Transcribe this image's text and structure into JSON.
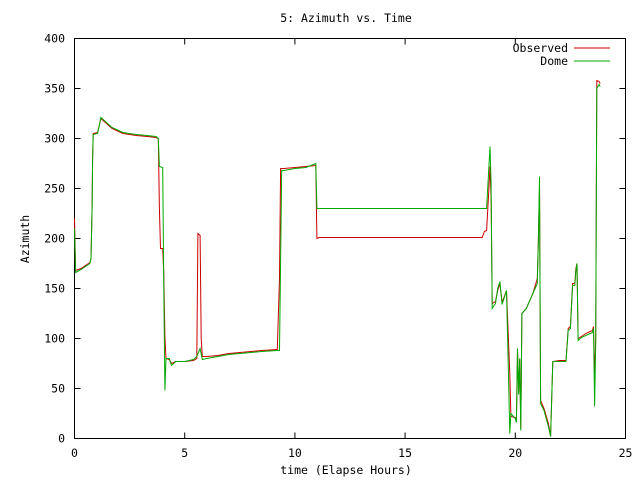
{
  "chart_data": {
    "type": "line",
    "title": "5: Azimuth vs. Time",
    "xlabel": "time (Elapse Hours)",
    "ylabel": "Azimuth",
    "xlim": [
      0,
      25
    ],
    "ylim": [
      0,
      400
    ],
    "xticks": [
      0,
      5,
      10,
      15,
      20,
      25
    ],
    "yticks": [
      0,
      50,
      100,
      150,
      200,
      250,
      300,
      350,
      400
    ],
    "grid": false,
    "legend": "top-right",
    "series": [
      {
        "name": "Observed",
        "color": "#cc0000",
        "points": [
          [
            0,
            220
          ],
          [
            0.05,
            168
          ],
          [
            0.3,
            170
          ],
          [
            0.7,
            176
          ],
          [
            0.75,
            180
          ],
          [
            0.8,
            232
          ],
          [
            0.82,
            280
          ],
          [
            0.85,
            305
          ],
          [
            1.05,
            306
          ],
          [
            1.2,
            320
          ],
          [
            1.4,
            316
          ],
          [
            1.7,
            310
          ],
          [
            2.2,
            305
          ],
          [
            2.8,
            303
          ],
          [
            3.3,
            302
          ],
          [
            3.7,
            301
          ],
          [
            3.8,
            300
          ],
          [
            3.85,
            230
          ],
          [
            3.9,
            190
          ],
          [
            4.0,
            190
          ],
          [
            4.05,
            165
          ],
          [
            4.1,
            102
          ],
          [
            4.15,
            80
          ],
          [
            4.3,
            79
          ],
          [
            4.4,
            75
          ],
          [
            4.6,
            77
          ],
          [
            5.0,
            77
          ],
          [
            5.4,
            78
          ],
          [
            5.55,
            80
          ],
          [
            5.6,
            205
          ],
          [
            5.7,
            203
          ],
          [
            5.75,
            100
          ],
          [
            5.8,
            82
          ],
          [
            6.0,
            82
          ],
          [
            6.5,
            83
          ],
          [
            7.0,
            85
          ],
          [
            7.5,
            86
          ],
          [
            8.0,
            87
          ],
          [
            8.5,
            88
          ],
          [
            9.2,
            89
          ],
          [
            9.3,
            160
          ],
          [
            9.35,
            270
          ],
          [
            9.5,
            270
          ],
          [
            10.0,
            271
          ],
          [
            10.5,
            272
          ],
          [
            10.95,
            273
          ],
          [
            11.0,
            200
          ],
          [
            11.1,
            201
          ],
          [
            12.0,
            201
          ],
          [
            14.0,
            201
          ],
          [
            16.0,
            201
          ],
          [
            18.0,
            201
          ],
          [
            18.5,
            201
          ],
          [
            18.6,
            207
          ],
          [
            18.7,
            208
          ],
          [
            18.8,
            250
          ],
          [
            18.85,
            272
          ],
          [
            18.9,
            240
          ],
          [
            18.95,
            135
          ],
          [
            19.1,
            137
          ],
          [
            19.2,
            148
          ],
          [
            19.3,
            155
          ],
          [
            19.4,
            136
          ],
          [
            19.6,
            148
          ],
          [
            19.75,
            65
          ],
          [
            19.8,
            22
          ],
          [
            20.0,
            21
          ],
          [
            20.05,
            18
          ],
          [
            20.1,
            88
          ],
          [
            20.15,
            46
          ],
          [
            20.2,
            80
          ],
          [
            20.25,
            10
          ],
          [
            20.3,
            125
          ],
          [
            20.5,
            130
          ],
          [
            20.8,
            145
          ],
          [
            21.0,
            160
          ],
          [
            21.05,
            200
          ],
          [
            21.1,
            250
          ],
          [
            21.15,
            38
          ],
          [
            21.3,
            30
          ],
          [
            21.5,
            15
          ],
          [
            21.6,
            2
          ],
          [
            21.7,
            77
          ],
          [
            22.0,
            78
          ],
          [
            22.3,
            78
          ],
          [
            22.4,
            110
          ],
          [
            22.5,
            112
          ],
          [
            22.6,
            155
          ],
          [
            22.7,
            155
          ],
          [
            22.75,
            170
          ],
          [
            22.8,
            175
          ],
          [
            22.85,
            100
          ],
          [
            23.0,
            102
          ],
          [
            23.2,
            105
          ],
          [
            23.5,
            108
          ],
          [
            23.55,
            112
          ],
          [
            23.6,
            60
          ],
          [
            23.65,
            100
          ],
          [
            23.7,
            358
          ],
          [
            23.8,
            357
          ],
          [
            23.85,
            355
          ]
        ]
      },
      {
        "name": "Dome",
        "color": "#00aa00",
        "points": [
          [
            0,
            210
          ],
          [
            0.05,
            166
          ],
          [
            0.3,
            169
          ],
          [
            0.7,
            175
          ],
          [
            0.75,
            180
          ],
          [
            0.8,
            230
          ],
          [
            0.82,
            278
          ],
          [
            0.85,
            304
          ],
          [
            1.05,
            305
          ],
          [
            1.2,
            321
          ],
          [
            1.4,
            317
          ],
          [
            1.7,
            311
          ],
          [
            2.2,
            306
          ],
          [
            2.8,
            304
          ],
          [
            3.3,
            303
          ],
          [
            3.7,
            302
          ],
          [
            3.8,
            300
          ],
          [
            3.85,
            272
          ],
          [
            4.0,
            271
          ],
          [
            4.05,
            150
          ],
          [
            4.1,
            48
          ],
          [
            4.15,
            80
          ],
          [
            4.3,
            80
          ],
          [
            4.4,
            73
          ],
          [
            4.6,
            77
          ],
          [
            5.0,
            77
          ],
          [
            5.4,
            79
          ],
          [
            5.55,
            82
          ],
          [
            5.7,
            90
          ],
          [
            5.8,
            79
          ],
          [
            6.0,
            80
          ],
          [
            6.5,
            82
          ],
          [
            7.0,
            84
          ],
          [
            7.5,
            85
          ],
          [
            8.0,
            86
          ],
          [
            8.5,
            87
          ],
          [
            9.2,
            88
          ],
          [
            9.3,
            88
          ],
          [
            9.4,
            268
          ],
          [
            9.5,
            268
          ],
          [
            10.0,
            270
          ],
          [
            10.5,
            271
          ],
          [
            10.95,
            275
          ],
          [
            11.0,
            230
          ],
          [
            11.1,
            230
          ],
          [
            12.0,
            230
          ],
          [
            14.0,
            230
          ],
          [
            16.0,
            230
          ],
          [
            18.0,
            230
          ],
          [
            18.5,
            230
          ],
          [
            18.6,
            230
          ],
          [
            18.7,
            230
          ],
          [
            18.8,
            272
          ],
          [
            18.85,
            292
          ],
          [
            18.9,
            255
          ],
          [
            18.95,
            130
          ],
          [
            19.1,
            135
          ],
          [
            19.2,
            150
          ],
          [
            19.3,
            157
          ],
          [
            19.4,
            134
          ],
          [
            19.6,
            148
          ],
          [
            19.75,
            5
          ],
          [
            19.8,
            25
          ],
          [
            20.0,
            20
          ],
          [
            20.05,
            16
          ],
          [
            20.1,
            90
          ],
          [
            20.15,
            44
          ],
          [
            20.2,
            80
          ],
          [
            20.25,
            8
          ],
          [
            20.3,
            125
          ],
          [
            20.5,
            130
          ],
          [
            20.8,
            145
          ],
          [
            21.0,
            155
          ],
          [
            21.05,
            200
          ],
          [
            21.1,
            262
          ],
          [
            21.15,
            35
          ],
          [
            21.3,
            28
          ],
          [
            21.5,
            12
          ],
          [
            21.6,
            2
          ],
          [
            21.7,
            77
          ],
          [
            22.0,
            77
          ],
          [
            22.3,
            77
          ],
          [
            22.4,
            108
          ],
          [
            22.5,
            110
          ],
          [
            22.6,
            153
          ],
          [
            22.7,
            153
          ],
          [
            22.75,
            168
          ],
          [
            22.8,
            175
          ],
          [
            22.85,
            98
          ],
          [
            23.0,
            101
          ],
          [
            23.2,
            103
          ],
          [
            23.5,
            106
          ],
          [
            23.55,
            110
          ],
          [
            23.6,
            32
          ],
          [
            23.65,
            95
          ],
          [
            23.7,
            350
          ],
          [
            23.8,
            354
          ],
          [
            23.85,
            352
          ]
        ]
      }
    ]
  }
}
